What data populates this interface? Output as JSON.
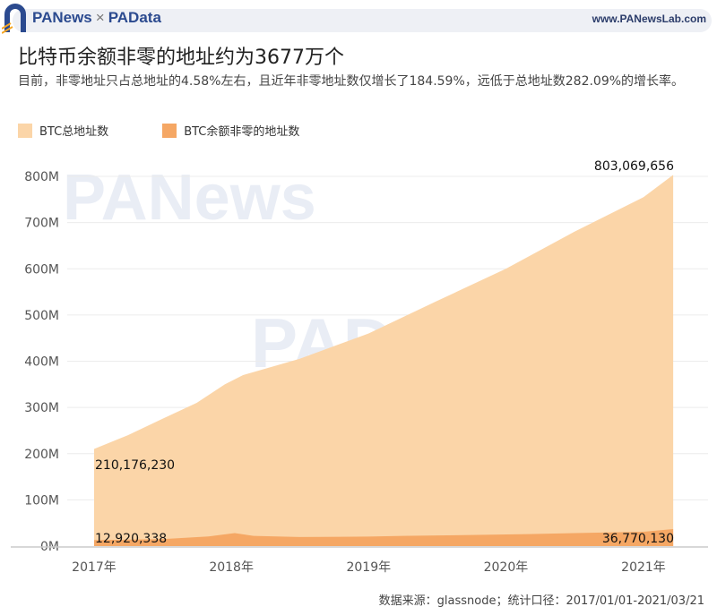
{
  "header": {
    "brand_left": "PANews",
    "brand_sep": "×",
    "brand_right": "PAData",
    "site": "www.PANewsLab.com"
  },
  "title": "比特币余额非零的地址约为3677万个",
  "subtitle": "目前，非零地址只占总地址的4.58%左右，且近年非零地址数仅增长了184.59%，远低于总地址数282.09%的增长率。",
  "source": "数据来源：glassnode；统计口径：2017/01/01-2021/03/21",
  "watermarks": [
    "PANews",
    "PAData"
  ],
  "chart_data": {
    "type": "area",
    "x_unit": "date",
    "xlim": [
      "2017-01-01",
      "2021-03-21"
    ],
    "ylim": [
      0,
      800000000
    ],
    "grid": true,
    "legend_position": "top-left",
    "x_ticks": [
      {
        "date": "2017-01-01",
        "label": "2017年"
      },
      {
        "date": "2018-01-01",
        "label": "2018年"
      },
      {
        "date": "2019-01-01",
        "label": "2019年"
      },
      {
        "date": "2020-01-01",
        "label": "2020年"
      },
      {
        "date": "2021-01-01",
        "label": "2021年"
      }
    ],
    "y_ticks": [
      {
        "value": 0,
        "label": "0M"
      },
      {
        "value": 100000000,
        "label": "100M"
      },
      {
        "value": 200000000,
        "label": "200M"
      },
      {
        "value": 300000000,
        "label": "300M"
      },
      {
        "value": 400000000,
        "label": "400M"
      },
      {
        "value": 500000000,
        "label": "500M"
      },
      {
        "value": 600000000,
        "label": "600M"
      },
      {
        "value": 700000000,
        "label": "700M"
      },
      {
        "value": 800000000,
        "label": "800M"
      }
    ],
    "series": [
      {
        "name": "BTC总地址数",
        "color": "#fbd5a8",
        "points": [
          [
            "2017-01-01",
            210176230
          ],
          [
            "2017-04-01",
            240000000
          ],
          [
            "2017-07-01",
            275000000
          ],
          [
            "2017-10-01",
            310000000
          ],
          [
            "2017-12-15",
            350000000
          ],
          [
            "2018-02-01",
            370000000
          ],
          [
            "2018-07-01",
            405000000
          ],
          [
            "2019-01-01",
            460000000
          ],
          [
            "2019-07-01",
            530000000
          ],
          [
            "2020-01-01",
            600000000
          ],
          [
            "2020-07-01",
            680000000
          ],
          [
            "2021-01-01",
            755000000
          ],
          [
            "2021-03-21",
            803069656
          ]
        ]
      },
      {
        "name": "BTC余额非零的地址数",
        "color": "#f5a764",
        "points": [
          [
            "2017-01-01",
            12920338
          ],
          [
            "2017-07-01",
            15000000
          ],
          [
            "2017-11-01",
            21000000
          ],
          [
            "2018-01-10",
            28000000
          ],
          [
            "2018-03-01",
            22000000
          ],
          [
            "2018-07-01",
            19500000
          ],
          [
            "2019-01-01",
            20500000
          ],
          [
            "2019-04-01",
            22000000
          ],
          [
            "2019-10-01",
            24000000
          ],
          [
            "2020-03-01",
            26000000
          ],
          [
            "2020-09-01",
            29000000
          ],
          [
            "2021-01-01",
            31000000
          ],
          [
            "2021-03-21",
            36770130
          ]
        ]
      }
    ],
    "annotations": [
      {
        "text": "803,069,656",
        "date": "2021-03-21",
        "value": 803069656
      },
      {
        "text": "210,176,230",
        "date": "2017-01-01",
        "value": 210176230
      },
      {
        "text": "12,920,338",
        "date": "2017-01-01",
        "value": 12920338
      },
      {
        "text": "36,770,130",
        "date": "2021-03-21",
        "value": 36770130
      }
    ]
  }
}
